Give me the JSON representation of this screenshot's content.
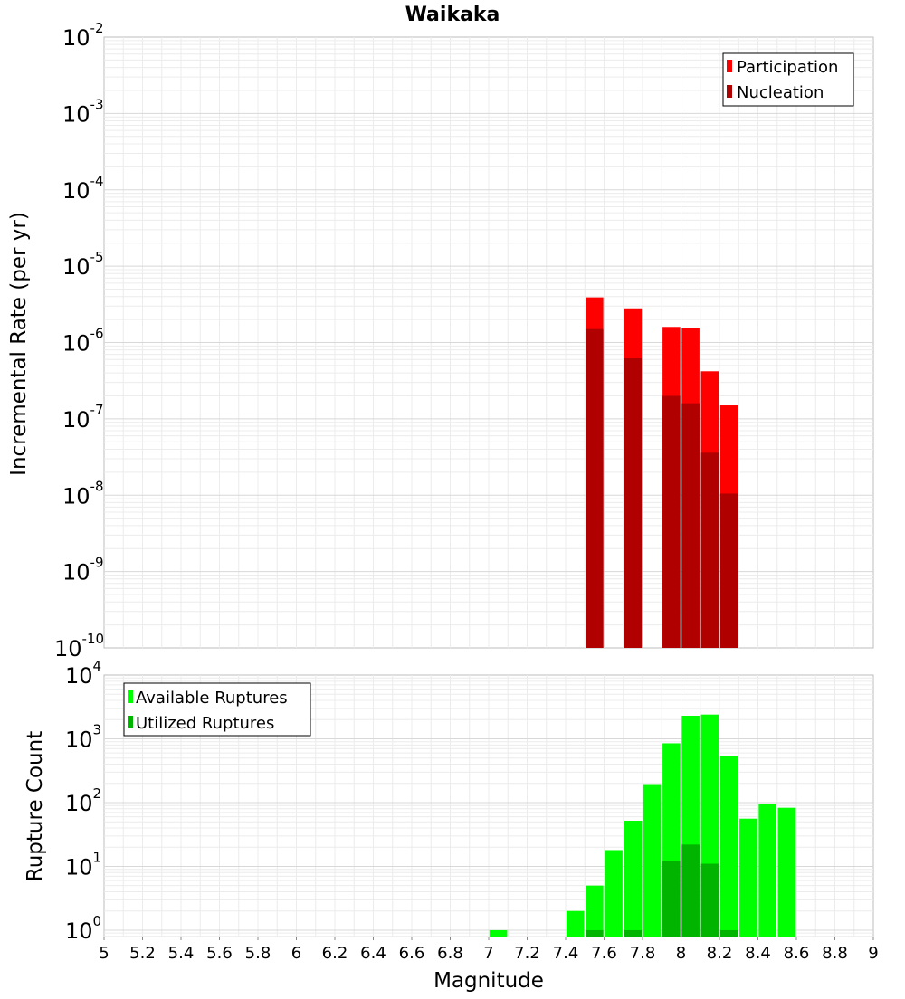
{
  "chart_data": [
    {
      "type": "bar",
      "title": "Waikaka",
      "xlabel": "",
      "ylabel": "Incremental Rate (per yr)",
      "yscale": "log",
      "ylim_exponents": [
        -10,
        -2
      ],
      "y_tick_base": "10",
      "y_tick_exponents": [
        "-10",
        "-9",
        "-8",
        "-7",
        "-6",
        "-5",
        "-4",
        "-3",
        "-2"
      ],
      "xlim": [
        5,
        9
      ],
      "bin_width": 0.1,
      "grid": true,
      "legend_position": "top-right",
      "colors": {
        "Participation": "#ff0000",
        "Nucleation": "#b00000"
      },
      "x": [
        7.55,
        7.75,
        7.95,
        8.05,
        8.15,
        8.25
      ],
      "series": [
        {
          "name": "Participation",
          "values": [
            3.9e-06,
            2.8e-06,
            1.6e-06,
            1.55e-06,
            4.2e-07,
            1.5e-07
          ]
        },
        {
          "name": "Nucleation",
          "values": [
            1.5e-06,
            6.2e-07,
            2e-07,
            1.6e-07,
            3.6e-08,
            1.05e-08
          ]
        }
      ]
    },
    {
      "type": "bar",
      "title": "",
      "xlabel": "Magnitude",
      "ylabel": "Rupture Count",
      "yscale": "log",
      "ylim_exponents": [
        -0.1,
        4
      ],
      "y_tick_base": "10",
      "y_tick_exponents": [
        "0",
        "1",
        "2",
        "3",
        "4"
      ],
      "xlim": [
        5,
        9
      ],
      "x_ticks": [
        "5",
        "5.2",
        "5.4",
        "5.6",
        "5.8",
        "6",
        "6.2",
        "6.4",
        "6.6",
        "6.8",
        "7",
        "7.2",
        "7.4",
        "7.6",
        "7.8",
        "8",
        "8.2",
        "8.4",
        "8.6",
        "8.8",
        "9"
      ],
      "bin_width": 0.1,
      "grid": true,
      "legend_position": "top-left",
      "colors": {
        "Available Ruptures": "#00ff00",
        "Utilized Ruptures": "#00b400"
      },
      "series": [
        {
          "name": "Available Ruptures",
          "x": [
            7.05,
            7.45,
            7.55,
            7.65,
            7.75,
            7.85,
            7.95,
            8.05,
            8.15,
            8.25,
            8.35,
            8.45,
            8.55
          ],
          "values": [
            1,
            2,
            5,
            18,
            52,
            195,
            850,
            2300,
            2400,
            540,
            56,
            95,
            83
          ]
        },
        {
          "name": "Utilized Ruptures",
          "x": [
            7.55,
            7.75,
            7.95,
            8.05,
            8.15,
            8.25
          ],
          "values": [
            1,
            1,
            12,
            22,
            11,
            1
          ]
        }
      ]
    }
  ]
}
